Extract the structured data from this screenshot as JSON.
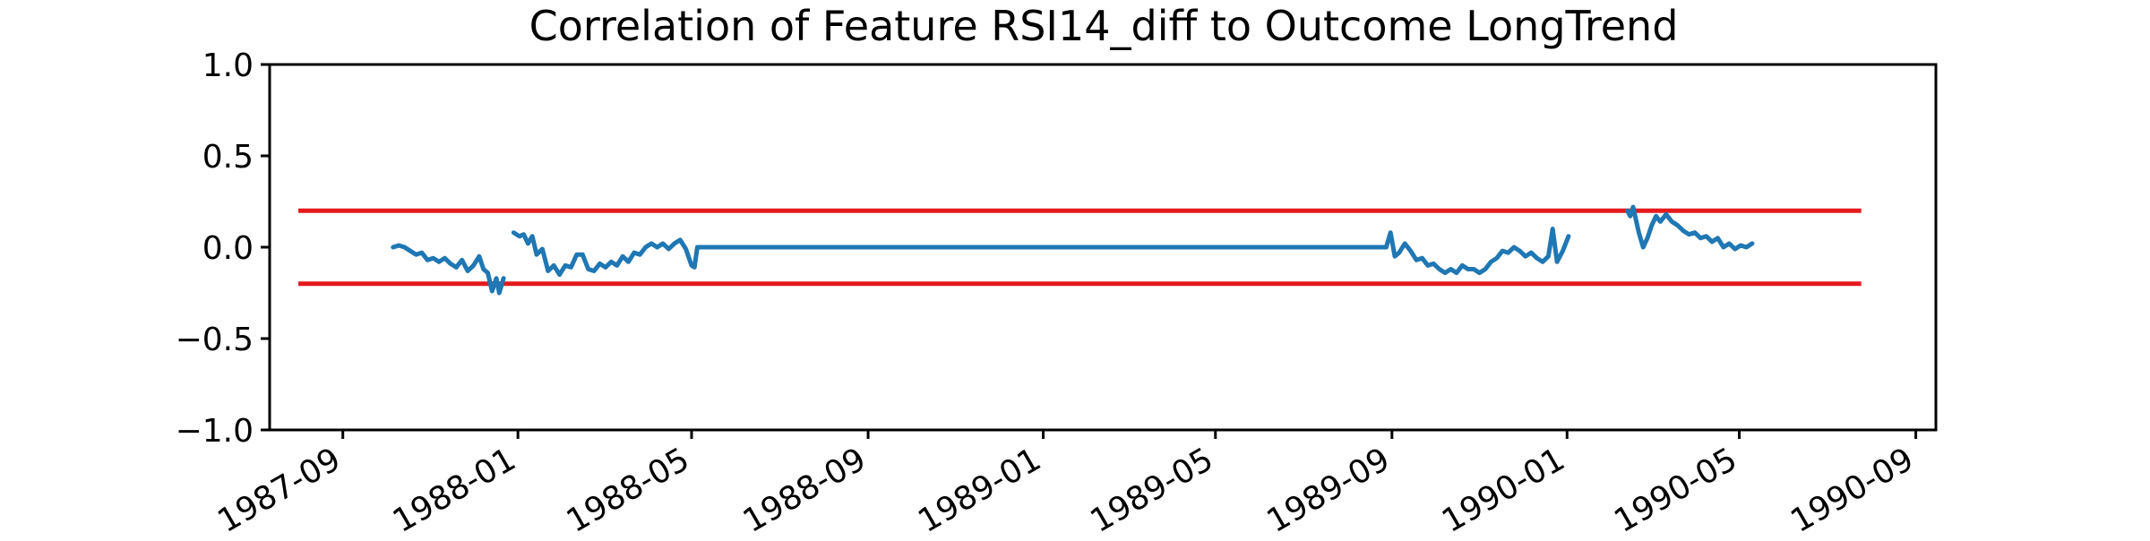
{
  "chart_data": {
    "type": "line",
    "title": "Correlation of Feature RSI14_diff to Outcome LongTrend",
    "xlabel": "",
    "ylabel": "",
    "x_axis": "date",
    "xlim": [
      "1987-07-12",
      "1990-09-15"
    ],
    "ylim": [
      -1.0,
      1.0
    ],
    "x_ticks": [
      "1987-09",
      "1988-01",
      "1988-05",
      "1988-09",
      "1989-01",
      "1989-05",
      "1989-09",
      "1990-01",
      "1990-05",
      "1990-09"
    ],
    "y_ticks": [
      1.0,
      0.5,
      0.0,
      -0.5,
      -1.0
    ],
    "y_tick_labels": [
      "1.0",
      "0.5",
      "0.0",
      "−0.5",
      "−1.0"
    ],
    "grid": false,
    "legend": "none",
    "threshold_lines": [
      {
        "y": 0.2,
        "x_start": "1987-08-01",
        "x_end": "1990-07-25",
        "color": "#e41a1c"
      },
      {
        "y": -0.2,
        "x_start": "1987-08-01",
        "x_end": "1990-07-25",
        "color": "#e41a1c"
      }
    ],
    "series": [
      {
        "color": "#1f77b4",
        "segments": [
          {
            "x": [
              "1987-10-06",
              "1987-10-10",
              "1987-10-14",
              "1987-10-18",
              "1987-10-22",
              "1987-10-26",
              "1987-10-30",
              "1987-11-03",
              "1987-11-07",
              "1987-11-11",
              "1987-11-15",
              "1987-11-19",
              "1987-11-23",
              "1987-11-27",
              "1987-12-01",
              "1987-12-05",
              "1987-12-08",
              "1987-12-11",
              "1987-12-14",
              "1987-12-17",
              "1987-12-19",
              "1987-12-22"
            ],
            "y": [
              0.0,
              0.01,
              0.0,
              -0.02,
              -0.04,
              -0.03,
              -0.07,
              -0.06,
              -0.08,
              -0.06,
              -0.09,
              -0.11,
              -0.07,
              -0.13,
              -0.1,
              -0.05,
              -0.12,
              -0.14,
              -0.24,
              -0.17,
              -0.25,
              -0.17
            ]
          },
          {
            "x": [
              "1987-12-29",
              "1988-01-02",
              "1988-01-05",
              "1988-01-08",
              "1988-01-11",
              "1988-01-14",
              "1988-01-18",
              "1988-01-22",
              "1988-01-26",
              "1988-01-30",
              "1988-02-03",
              "1988-02-07",
              "1988-02-11",
              "1988-02-15",
              "1988-02-19",
              "1988-02-23",
              "1988-02-27",
              "1988-03-02",
              "1988-03-06",
              "1988-03-10",
              "1988-03-14",
              "1988-03-18",
              "1988-03-22",
              "1988-03-26",
              "1988-03-30",
              "1988-04-03",
              "1988-04-07",
              "1988-04-11",
              "1988-04-15",
              "1988-04-19",
              "1988-04-23",
              "1988-04-27",
              "1988-05-01",
              "1988-05-03",
              "1988-05-05",
              "1988-05-07"
            ],
            "y": [
              0.08,
              0.06,
              0.07,
              0.02,
              0.06,
              -0.04,
              -0.01,
              -0.13,
              -0.1,
              -0.15,
              -0.1,
              -0.11,
              -0.04,
              -0.04,
              -0.12,
              -0.13,
              -0.09,
              -0.11,
              -0.08,
              -0.1,
              -0.05,
              -0.08,
              -0.03,
              -0.04,
              0.0,
              0.02,
              0.0,
              0.02,
              -0.01,
              0.02,
              0.04,
              -0.01,
              -0.1,
              -0.11,
              0.0,
              0.0
            ]
          },
          {
            "x": [
              "1988-05-07",
              "1989-08-28"
            ],
            "y": [
              0.0,
              0.0
            ]
          },
          {
            "x": [
              "1989-08-28",
              "1989-08-31",
              "1989-09-03",
              "1989-09-06",
              "1989-09-10",
              "1989-09-14",
              "1989-09-18",
              "1989-09-22",
              "1989-09-26",
              "1989-09-30",
              "1989-10-04",
              "1989-10-08",
              "1989-10-12",
              "1989-10-16",
              "1989-10-20",
              "1989-10-24",
              "1989-10-28",
              "1989-11-01",
              "1989-11-05",
              "1989-11-09",
              "1989-11-13",
              "1989-11-17",
              "1989-11-21",
              "1989-11-25",
              "1989-11-29",
              "1989-12-03",
              "1989-12-07",
              "1989-12-11",
              "1989-12-15",
              "1989-12-19",
              "1989-12-22",
              "1989-12-25",
              "1989-12-29",
              "1990-01-02"
            ],
            "y": [
              0.0,
              0.08,
              -0.05,
              -0.03,
              0.02,
              -0.02,
              -0.07,
              -0.06,
              -0.1,
              -0.09,
              -0.12,
              -0.14,
              -0.12,
              -0.14,
              -0.1,
              -0.12,
              -0.12,
              -0.14,
              -0.12,
              -0.08,
              -0.06,
              -0.02,
              -0.03,
              0.0,
              -0.02,
              -0.05,
              -0.03,
              -0.06,
              -0.08,
              -0.05,
              0.1,
              -0.08,
              -0.02,
              0.06
            ]
          },
          {
            "x": [
              "1990-02-12",
              "1990-02-14",
              "1990-02-16",
              "1990-02-18",
              "1990-02-20",
              "1990-02-23",
              "1990-02-26",
              "1990-03-01",
              "1990-03-04",
              "1990-03-07",
              "1990-03-11",
              "1990-03-15",
              "1990-03-19",
              "1990-03-23",
              "1990-03-27",
              "1990-03-31",
              "1990-04-04",
              "1990-04-08",
              "1990-04-12",
              "1990-04-16",
              "1990-04-20",
              "1990-04-24",
              "1990-04-28",
              "1990-05-02",
              "1990-05-06",
              "1990-05-10"
            ],
            "y": [
              0.2,
              0.17,
              0.22,
              0.15,
              0.08,
              0.0,
              0.05,
              0.12,
              0.17,
              0.14,
              0.18,
              0.14,
              0.12,
              0.09,
              0.07,
              0.08,
              0.05,
              0.06,
              0.03,
              0.05,
              0.0,
              0.02,
              -0.01,
              0.01,
              0.0,
              0.02
            ]
          }
        ]
      }
    ]
  }
}
